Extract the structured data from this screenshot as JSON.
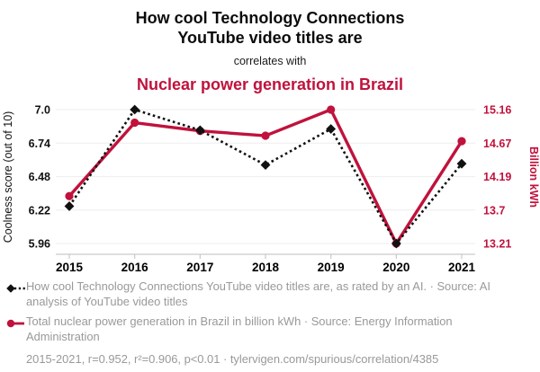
{
  "header": {
    "title_line1": "How cool Technology Connections",
    "title_line2": "YouTube video titles are",
    "connector": "correlates with",
    "subtitle": "Nuclear power generation in Brazil"
  },
  "chart_data": {
    "type": "line",
    "x": [
      2015,
      2016,
      2017,
      2018,
      2019,
      2020,
      2021
    ],
    "series": [
      {
        "name": "Coolness score of Technology Connections YouTube video titles",
        "axis": "left",
        "color": "#111111",
        "line_style": "dotted",
        "marker": "diamond",
        "values": [
          6.25,
          7.0,
          6.84,
          6.57,
          6.85,
          5.96,
          6.58
        ]
      },
      {
        "name": "Total nuclear power generation in Brazil (billion kWh)",
        "axis": "right",
        "color": "#c0123c",
        "line_style": "solid",
        "marker": "circle",
        "values": [
          13.9,
          14.97,
          14.85,
          14.78,
          15.16,
          13.21,
          14.7
        ]
      }
    ],
    "left_axis": {
      "label": "Coolness score (out of 10)",
      "ticks": [
        5.96,
        6.22,
        6.48,
        6.74,
        7.0
      ],
      "tick_labels": [
        "5.96",
        "6.22",
        "6.48",
        "6.74",
        "7.0"
      ],
      "range": [
        5.96,
        7.0
      ]
    },
    "right_axis": {
      "label": "Billion kWh",
      "ticks": [
        13.21,
        13.7,
        14.19,
        14.67,
        15.16
      ],
      "tick_labels": [
        "13.21",
        "13.7",
        "14.19",
        "14.67",
        "15.16"
      ],
      "range": [
        13.21,
        15.16
      ]
    },
    "grid": true,
    "legend_position": "bottom"
  },
  "legend": {
    "entries": [
      {
        "marker": "black-diamond-dotted-line",
        "text": "How cool Technology Connections YouTube video titles are, as rated by an AI. · Source: AI analysis of YouTube video titles"
      },
      {
        "marker": "red-circle-solid-line",
        "text": "Total nuclear power generation in Brazil in billion kWh · Source: Energy Information Administration"
      }
    ]
  },
  "footer": {
    "stats": "2015-2021, r=0.952, r²=0.906, p<0.01 · tylervigen.com/spurious/correlation/4385"
  },
  "colors": {
    "accent_red": "#c0123c",
    "series_black": "#111111",
    "legend_gray": "#999999",
    "gridline": "#f0f0f0",
    "axis_line": "#c9c9c9"
  }
}
